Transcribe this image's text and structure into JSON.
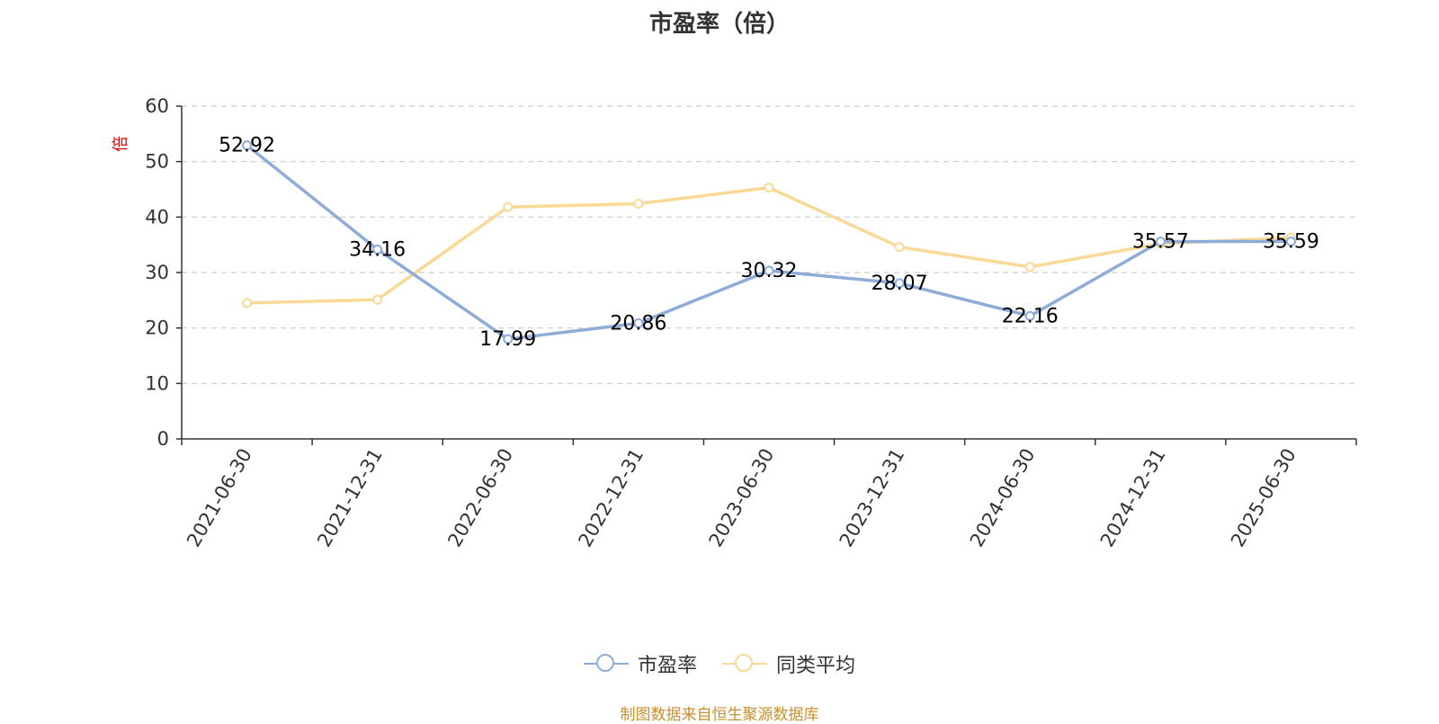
{
  "chart_data": {
    "type": "line",
    "title": "市盈率（倍）",
    "ylabel": "倍",
    "ylim": [
      0,
      60
    ],
    "yticks": [
      0,
      10,
      20,
      30,
      40,
      50,
      60
    ],
    "categories": [
      "2021-06-30",
      "2021-12-31",
      "2022-06-30",
      "2022-12-31",
      "2023-06-30",
      "2023-12-31",
      "2024-06-30",
      "2024-12-31",
      "2025-06-30"
    ],
    "grid": true,
    "legend_position": "bottom",
    "series": [
      {
        "name": "市盈率",
        "color": "#8eacd8",
        "values": [
          52.92,
          34.16,
          17.99,
          20.86,
          30.32,
          28.07,
          22.16,
          35.57,
          35.59
        ],
        "labels": [
          "52.92",
          "34.16",
          "17.99",
          "20.86",
          "30.32",
          "28.07",
          "22.16",
          "35.57",
          "35.59"
        ]
      },
      {
        "name": "同类平均",
        "color": "#fad996",
        "values": [
          24.5,
          25.1,
          41.8,
          42.4,
          45.3,
          34.6,
          31.0,
          35.2,
          36.3
        ]
      }
    ],
    "source": "制图数据来自恒生聚源数据库"
  }
}
